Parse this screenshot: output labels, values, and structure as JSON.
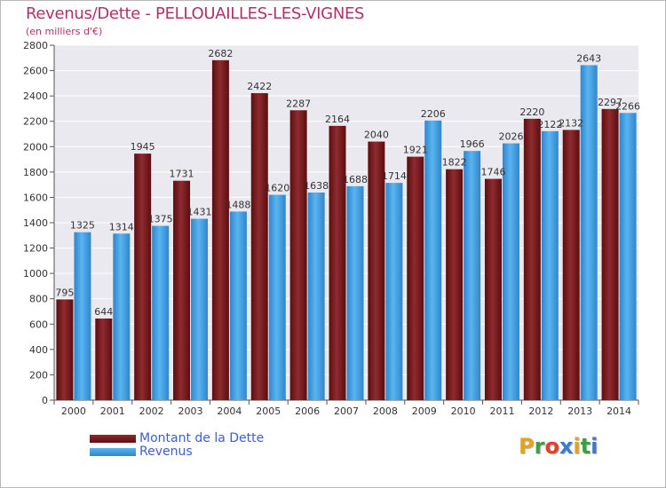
{
  "chart_data": {
    "type": "bar",
    "title": "Revenus/Dette - PELLOUAILLES-LES-VIGNES",
    "subtitle": "(en milliers d'€)",
    "categories": [
      "2000",
      "2001",
      "2002",
      "2003",
      "2004",
      "2005",
      "2006",
      "2007",
      "2008",
      "2009",
      "2010",
      "2011",
      "2012",
      "2013",
      "2014"
    ],
    "series": [
      {
        "name": "Montant de la Dette",
        "color": "#7a1f22",
        "values": [
          795,
          644,
          1945,
          1731,
          2682,
          2422,
          2287,
          2164,
          2040,
          1921,
          1822,
          1746,
          2220,
          2132,
          2297
        ]
      },
      {
        "name": "Revenus",
        "color": "#4da6e8",
        "values": [
          1325,
          1314,
          1375,
          1431,
          1488,
          1620,
          1638,
          1688,
          1714,
          2206,
          1966,
          2026,
          2122,
          2643,
          2266
        ]
      }
    ],
    "ylim": [
      0,
      2800
    ],
    "yticks": [
      0,
      200,
      400,
      600,
      800,
      1000,
      1200,
      1400,
      1600,
      1800,
      2000,
      2200,
      2400,
      2600,
      2800
    ],
    "grid": true,
    "legend_position": "bottom-left"
  },
  "logo": {
    "letters": [
      "P",
      "r",
      "o",
      "x",
      "i",
      "t",
      "i"
    ],
    "colors": [
      "#e8a020",
      "#3aa040",
      "#e04030",
      "#3a7ad0",
      "#e8a020",
      "#3aa040",
      "#3a7ad0"
    ]
  }
}
